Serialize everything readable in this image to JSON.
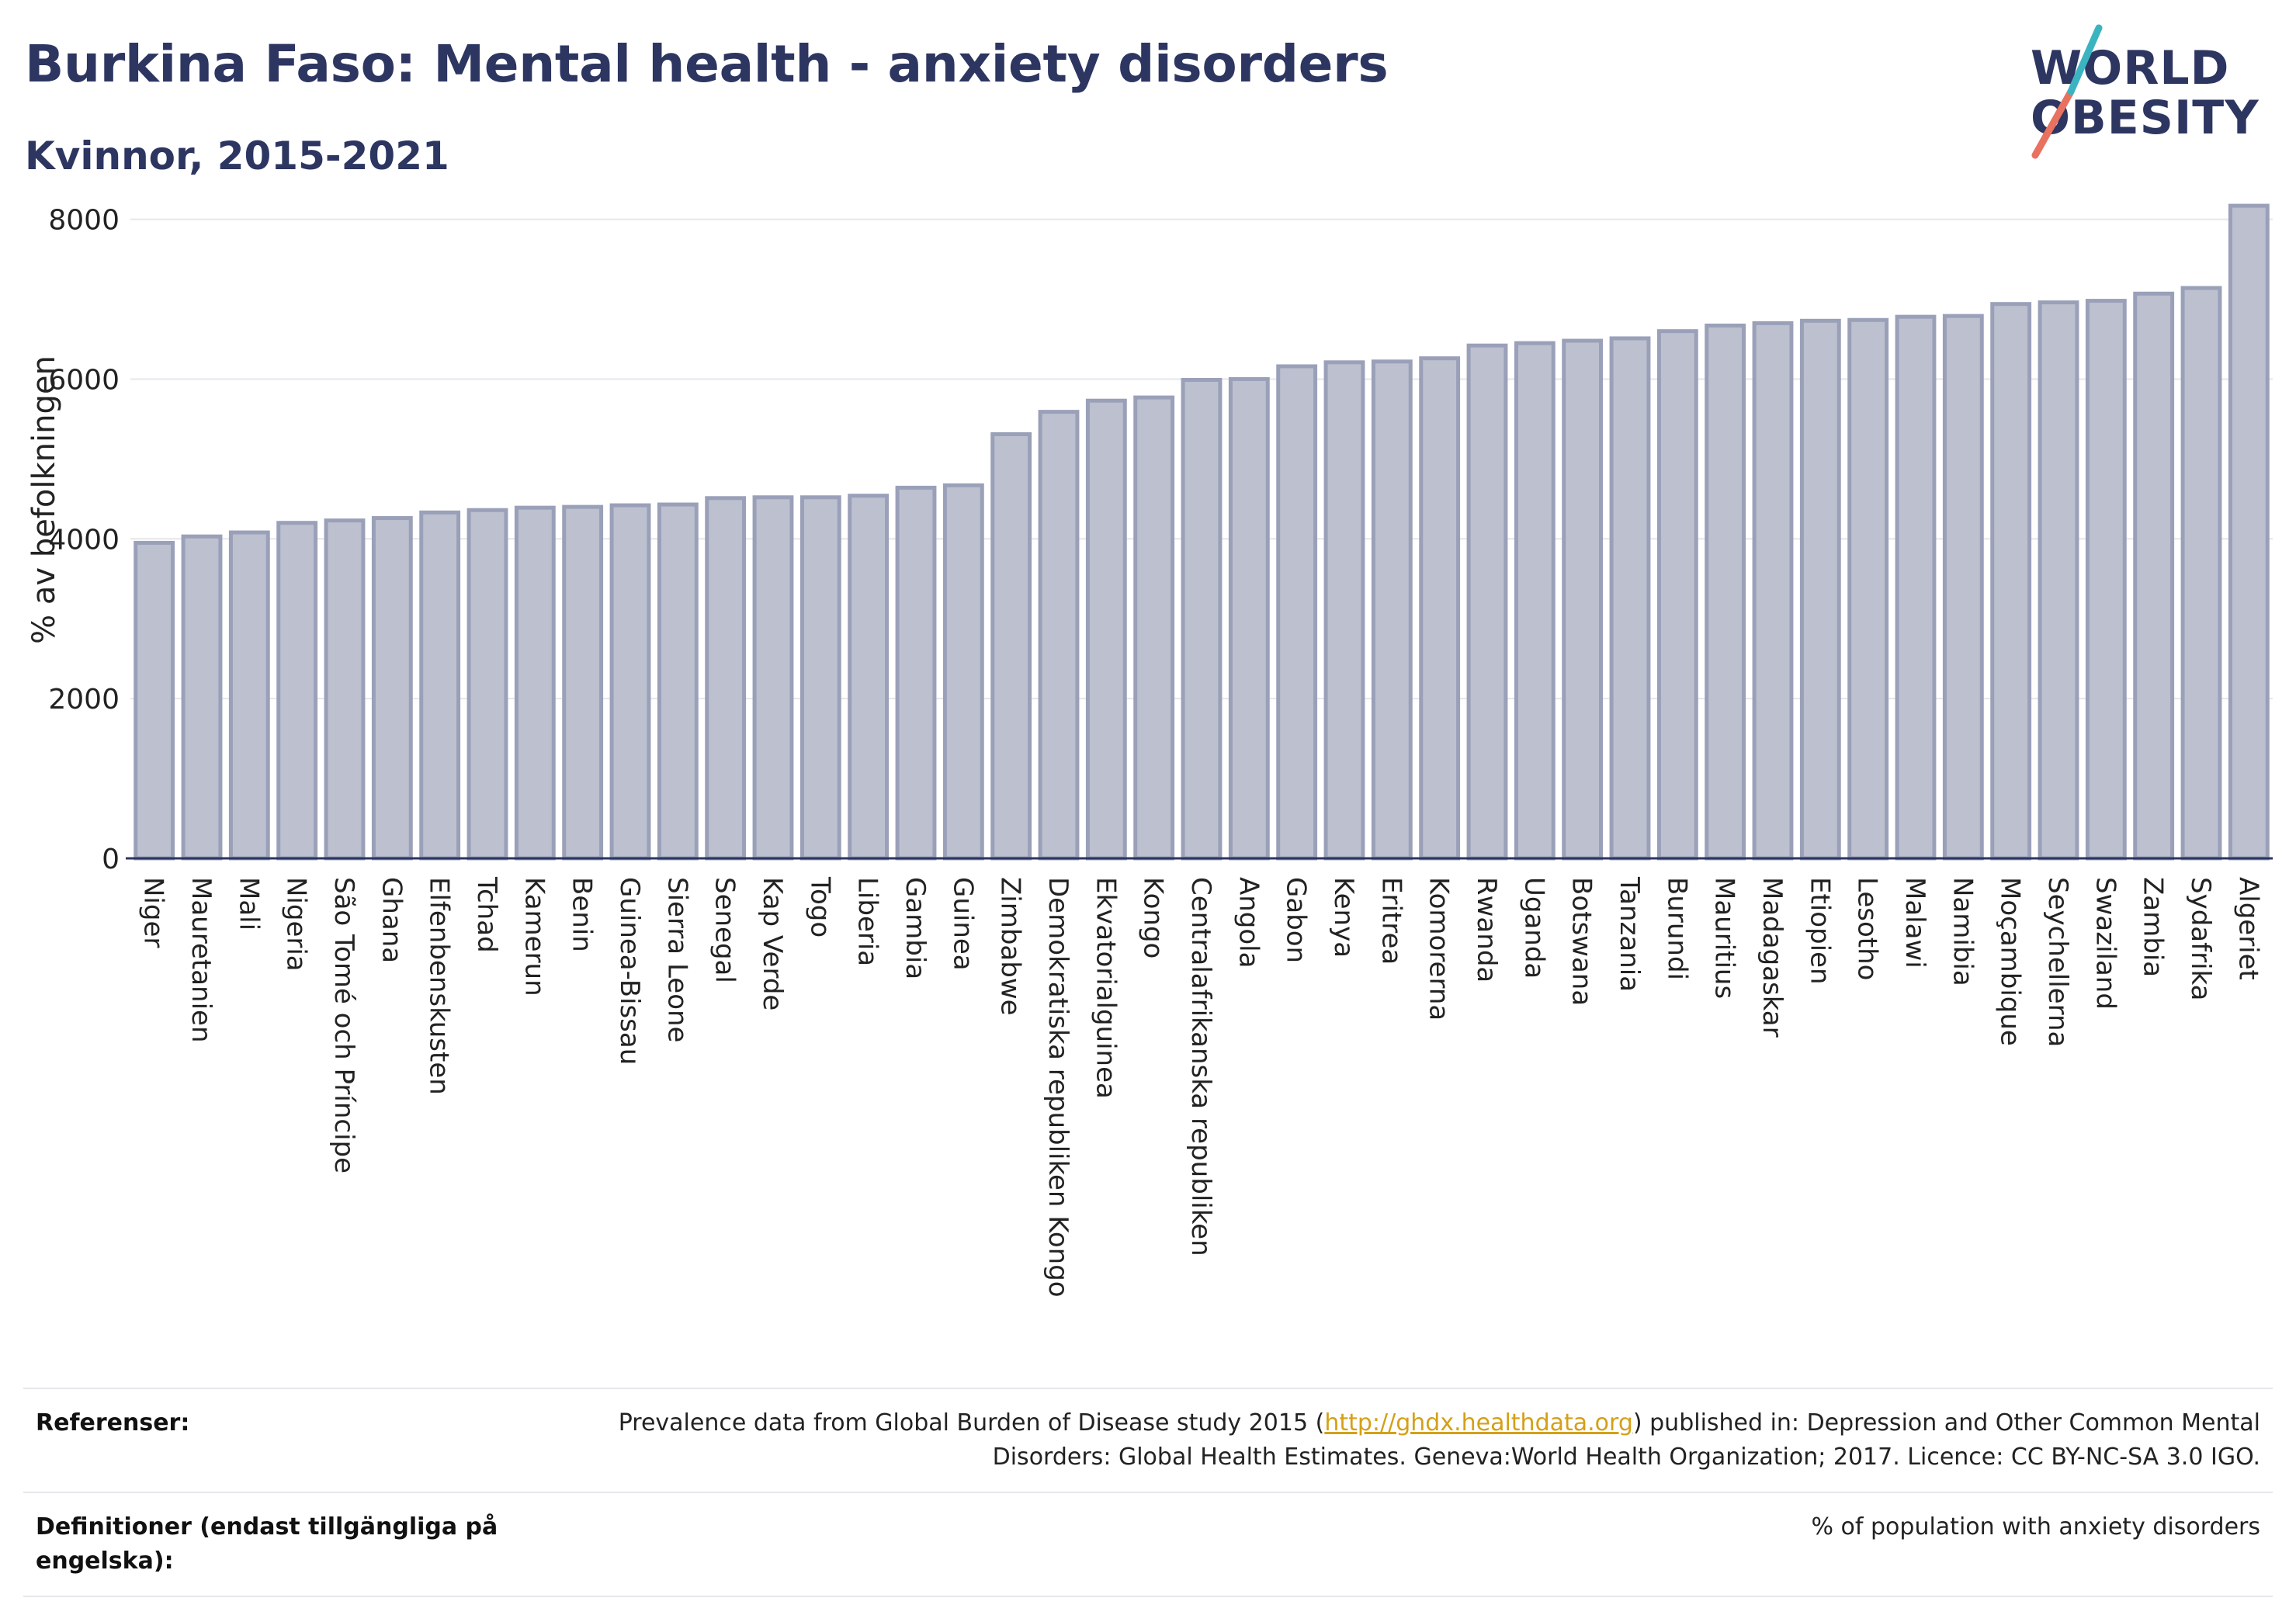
{
  "header": {
    "title": "Burkina Faso: Mental health - anxiety disorders",
    "subtitle": "Kvinnor, 2015-2021"
  },
  "logo": {
    "line1": "WORLD",
    "line2": "OBESITY"
  },
  "colors": {
    "title": "#2d3561",
    "bar_fill": "#bcc0cf",
    "bar_stroke": "#9aa0b8",
    "axis": "#2d3561",
    "grid": "#e6e6ec",
    "link": "#d4a017",
    "logo_slash_teal": "#3bb4c1",
    "logo_slash_coral": "#e8715f"
  },
  "chart_data": {
    "type": "bar",
    "title": "Burkina Faso: Mental health - anxiety disorders",
    "subtitle": "Kvinnor, 2015-2021",
    "ylabel": "% av befolkningen",
    "xlabel": "",
    "ylim": [
      0,
      8200
    ],
    "yticks": [
      0,
      2000,
      4000,
      6000,
      8000
    ],
    "grid": true,
    "categories": [
      "Niger",
      "Mauretanien",
      "Mali",
      "Nigeria",
      "São Tomé och Príncipe",
      "Ghana",
      "Elfenbenskusten",
      "Tchad",
      "Kamerun",
      "Benin",
      "Guinea-Bissau",
      "Sierra Leone",
      "Senegal",
      "Kap Verde",
      "Togo",
      "Liberia",
      "Gambia",
      "Guinea",
      "Zimbabwe",
      "Demokratiska republiken Kongo",
      "Ekvatorialguinea",
      "Kongo",
      "Centralafrikanska republiken",
      "Angola",
      "Gabon",
      "Kenya",
      "Eritrea",
      "Komorerna",
      "Rwanda",
      "Uganda",
      "Botswana",
      "Tanzania",
      "Burundi",
      "Mauritius",
      "Madagaskar",
      "Etiopien",
      "Lesotho",
      "Malawi",
      "Namibia",
      "Moçambique",
      "Seychellerna",
      "Swaziland",
      "Zambia",
      "Sydafrika",
      "Algeriet"
    ],
    "values": [
      3950,
      4030,
      4080,
      4200,
      4230,
      4260,
      4330,
      4360,
      4390,
      4400,
      4420,
      4430,
      4510,
      4520,
      4520,
      4540,
      4640,
      4670,
      5310,
      5590,
      5730,
      5770,
      5990,
      6000,
      6160,
      6210,
      6220,
      6260,
      6420,
      6450,
      6480,
      6510,
      6600,
      6670,
      6700,
      6730,
      6740,
      6780,
      6790,
      6940,
      6960,
      6980,
      7070,
      7140,
      8170
    ]
  },
  "footer": {
    "ref_label": "Referenser:",
    "ref_text_before": "Prevalence data from Global Burden of Disease study 2015 (",
    "ref_link": "http://ghdx.healthdata.org",
    "ref_text_after": ") published in: Depression and Other Common Mental Disorders: Global Health Estimates. Geneva:World Health Organization; 2017. Licence: CC BY-NC-SA 3.0 IGO.",
    "def_label": "Definitioner (endast tillgängliga på engelska):",
    "def_text": "% of population with anxiety disorders"
  }
}
